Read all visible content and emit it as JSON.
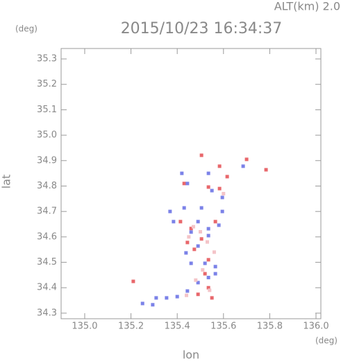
{
  "chart_data": {
    "type": "scatter",
    "title": "2015/10/23 16:34:37",
    "subtitle": "ALT(km) 2.0",
    "y_unit": "(deg)",
    "x_unit": "(deg)",
    "xlabel": "lon",
    "ylabel": "lat",
    "xlim": [
      134.898,
      136.021
    ],
    "ylim": [
      34.278,
      35.341
    ],
    "xticks": [
      {
        "value": 135.0,
        "label": "135.0"
      },
      {
        "value": 135.2,
        "label": "135.2"
      },
      {
        "value": 135.4,
        "label": "135.4"
      },
      {
        "value": 135.6,
        "label": "135.6"
      },
      {
        "value": 135.8,
        "label": "135.8"
      },
      {
        "value": 136.0,
        "label": "136.0"
      }
    ],
    "yticks": [
      {
        "value": 34.3,
        "label": "34.3"
      },
      {
        "value": 34.4,
        "label": "34.4"
      },
      {
        "value": 34.5,
        "label": "34.5"
      },
      {
        "value": 34.6,
        "label": "34.6"
      },
      {
        "value": 34.7,
        "label": "34.7"
      },
      {
        "value": 34.8,
        "label": "34.8"
      },
      {
        "value": 34.9,
        "label": "34.9"
      },
      {
        "value": 35.0,
        "label": "35.0"
      },
      {
        "value": 35.1,
        "label": "35.1"
      },
      {
        "value": 35.2,
        "label": "35.2"
      },
      {
        "value": 35.3,
        "label": "35.3"
      }
    ],
    "series": [
      {
        "color": "#e8676b",
        "x": [
          135.21,
          135.505,
          135.7,
          135.583,
          135.616,
          135.535,
          135.583,
          135.414,
          135.46,
          135.505,
          135.474,
          135.535,
          135.52,
          135.535,
          135.49,
          135.55,
          135.444,
          135.565,
          135.784,
          135.43
        ],
        "values": [
          34.425,
          34.921,
          34.905,
          34.878,
          34.837,
          34.796,
          34.79,
          34.66,
          34.633,
          34.592,
          34.551,
          34.51,
          34.455,
          34.4,
          34.374,
          34.36,
          34.578,
          34.66,
          34.864,
          34.81
        ]
      },
      {
        "color": "#7b82e8",
        "x": [
          135.25,
          135.294,
          135.354,
          135.4,
          135.444,
          135.49,
          135.535,
          135.565,
          135.52,
          135.46,
          135.438,
          135.49,
          135.535,
          135.46,
          135.384,
          135.369,
          135.43,
          135.505,
          135.535,
          135.58,
          135.49,
          135.42,
          135.444,
          135.535,
          135.55,
          135.595,
          135.685,
          135.309,
          135.595,
          135.565
        ],
        "values": [
          34.338,
          34.333,
          34.36,
          34.365,
          34.387,
          34.42,
          34.44,
          34.483,
          34.496,
          34.496,
          34.537,
          34.564,
          34.605,
          34.619,
          34.66,
          34.7,
          34.714,
          34.714,
          34.632,
          34.646,
          34.66,
          34.85,
          34.81,
          34.85,
          34.782,
          34.755,
          34.878,
          34.36,
          34.7,
          34.455
        ]
      },
      {
        "color": "#f4c4c8",
        "x": [
          135.47,
          135.5,
          135.53,
          135.45,
          135.56,
          135.51,
          135.48,
          135.54,
          135.6,
          135.44
        ],
        "values": [
          34.64,
          34.62,
          34.58,
          34.6,
          34.54,
          34.47,
          34.43,
          34.39,
          34.77,
          34.37
        ]
      }
    ]
  }
}
